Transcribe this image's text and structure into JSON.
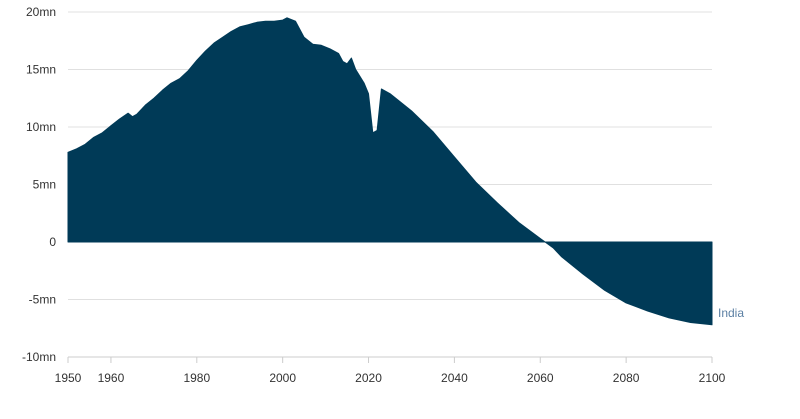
{
  "chart_data": {
    "type": "area",
    "series": [
      {
        "name": "India",
        "color": "#003a57",
        "label_color": "#5b7fa3",
        "points": [
          [
            1950,
            7.8
          ],
          [
            1952,
            8.1
          ],
          [
            1954,
            8.5
          ],
          [
            1956,
            9.1
          ],
          [
            1958,
            9.5
          ],
          [
            1960,
            10.1
          ],
          [
            1962,
            10.7
          ],
          [
            1964,
            11.2
          ],
          [
            1965,
            10.9
          ],
          [
            1966,
            11.1
          ],
          [
            1968,
            11.9
          ],
          [
            1970,
            12.5
          ],
          [
            1972,
            13.2
          ],
          [
            1974,
            13.8
          ],
          [
            1976,
            14.2
          ],
          [
            1978,
            14.9
          ],
          [
            1980,
            15.8
          ],
          [
            1982,
            16.6
          ],
          [
            1984,
            17.3
          ],
          [
            1986,
            17.8
          ],
          [
            1988,
            18.3
          ],
          [
            1990,
            18.7
          ],
          [
            1992,
            18.9
          ],
          [
            1994,
            19.1
          ],
          [
            1996,
            19.2
          ],
          [
            1998,
            19.2
          ],
          [
            2000,
            19.3
          ],
          [
            2001,
            19.5
          ],
          [
            2003,
            19.2
          ],
          [
            2005,
            17.8
          ],
          [
            2007,
            17.2
          ],
          [
            2009,
            17.1
          ],
          [
            2011,
            16.8
          ],
          [
            2013,
            16.4
          ],
          [
            2014,
            15.7
          ],
          [
            2015,
            15.5
          ],
          [
            2016,
            16.0
          ],
          [
            2017,
            15.0
          ],
          [
            2019,
            13.8
          ],
          [
            2020,
            12.9
          ],
          [
            2021,
            9.5
          ],
          [
            2022,
            9.7
          ],
          [
            2023,
            13.3
          ],
          [
            2025,
            12.9
          ],
          [
            2030,
            11.4
          ],
          [
            2035,
            9.6
          ],
          [
            2040,
            7.4
          ],
          [
            2045,
            5.2
          ],
          [
            2050,
            3.4
          ],
          [
            2055,
            1.7
          ],
          [
            2060,
            0.3
          ],
          [
            2063,
            -0.5
          ],
          [
            2065,
            -1.3
          ],
          [
            2070,
            -2.8
          ],
          [
            2075,
            -4.2
          ],
          [
            2080,
            -5.3
          ],
          [
            2085,
            -6.0
          ],
          [
            2090,
            -6.6
          ],
          [
            2095,
            -7.0
          ],
          [
            2100,
            -7.2
          ]
        ]
      }
    ],
    "xlim": [
      1950,
      2100
    ],
    "ylim": [
      -10,
      20
    ],
    "x_ticks": [
      1950,
      1960,
      1980,
      2000,
      2020,
      2040,
      2060,
      2080,
      2100
    ],
    "y_ticks": [
      {
        "value": 20,
        "label": "20mn"
      },
      {
        "value": 15,
        "label": "15mn"
      },
      {
        "value": 10,
        "label": "10mn"
      },
      {
        "value": 5,
        "label": "5mn"
      },
      {
        "value": 0,
        "label": "0"
      },
      {
        "value": -5,
        "label": "-5mn"
      },
      {
        "value": -10,
        "label": "-10mn"
      }
    ],
    "grid": true,
    "grid_color": "#e0e0e0",
    "axis_color": "#cccccc",
    "legend": "inline-right"
  }
}
